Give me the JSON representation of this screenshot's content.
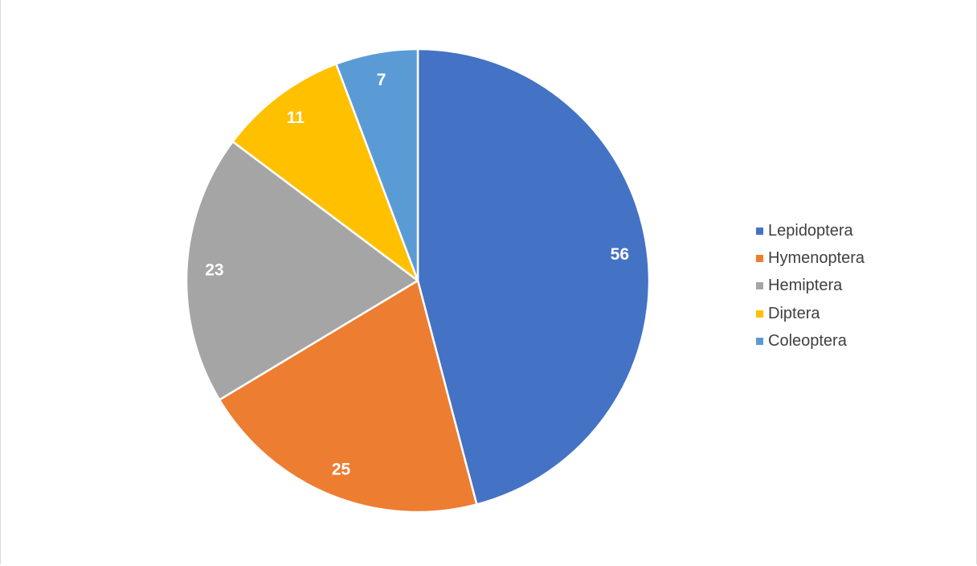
{
  "chart_data": {
    "type": "pie",
    "categories": [
      "Lepidoptera",
      "Hymenoptera",
      "Hemiptera",
      "Diptera",
      "Coleoptera"
    ],
    "values": [
      56,
      25,
      23,
      11,
      7
    ],
    "colors": [
      "#4472C4",
      "#ED7D31",
      "#A5A5A5",
      "#FFC000",
      "#5B9BD5"
    ],
    "data_labels": [
      "56",
      "25",
      "23",
      "11",
      "7"
    ],
    "start_angle": "12 o'clock, clockwise",
    "legend_position": "right"
  }
}
